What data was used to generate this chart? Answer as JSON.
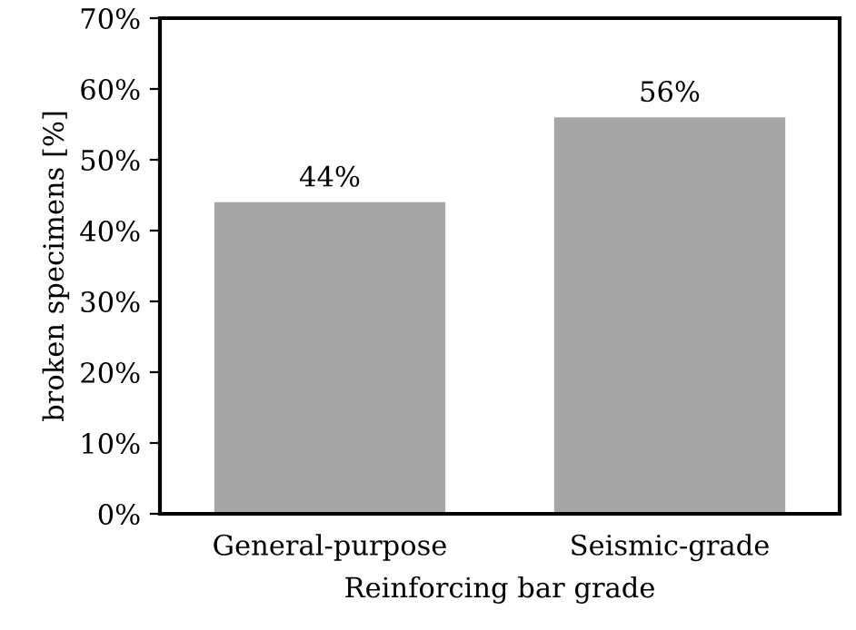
{
  "chart_data": {
    "type": "bar",
    "xlabel": "Reinforcing bar grade",
    "ylabel": "broken specimens [%]",
    "categories": [
      "General-purpose",
      "Seismic-grade"
    ],
    "values": [
      44,
      56
    ],
    "value_labels": [
      "44%",
      "56%"
    ],
    "color": "#a6a6a6",
    "ylim": [
      0,
      70
    ],
    "yticks": [
      {
        "value": 0,
        "label": "0%"
      },
      {
        "value": 10,
        "label": "10%"
      },
      {
        "value": 20,
        "label": "20%"
      },
      {
        "value": 30,
        "label": "30%"
      },
      {
        "value": 40,
        "label": "40%"
      },
      {
        "value": 50,
        "label": "50%"
      },
      {
        "value": 60,
        "label": "60%"
      },
      {
        "value": 70,
        "label": "70%"
      }
    ],
    "grid": false
  }
}
